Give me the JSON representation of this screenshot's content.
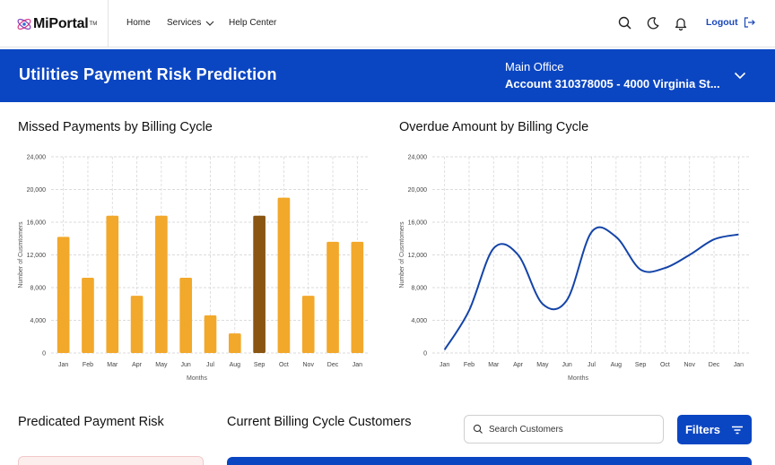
{
  "nav": {
    "logo_text": "MiPortal",
    "logo_tm": "TM",
    "links": {
      "home": "Home",
      "services": "Services",
      "help": "Help Center"
    },
    "logout_label": "Logout"
  },
  "banner": {
    "title": "Utilities Payment Risk Prediction",
    "office_name": "Main Office",
    "account": "Account 310378005 - 4000 Virginia St..."
  },
  "charts": {
    "missed_title": "Missed Payments by Billing Cycle",
    "overdue_title": "Overdue Amount by Billing Cycle"
  },
  "chart_data": [
    {
      "type": "bar",
      "title": "Missed Payments by Billing Cycle",
      "xlabel": "Months",
      "ylabel": "Number of Cusmtomers",
      "categories": [
        "Jan",
        "Feb",
        "Mar",
        "Apr",
        "May",
        "Jun",
        "Jul",
        "Aug",
        "Sep",
        "Oct",
        "Nov",
        "Dec",
        "Jan"
      ],
      "values": [
        14200,
        9200,
        16800,
        7000,
        16800,
        9200,
        4600,
        2400,
        16800,
        19000,
        7000,
        13600,
        13600
      ],
      "highlight_index": 8,
      "ylim": [
        0,
        24000
      ],
      "yticks": [
        "0",
        "4,000",
        "8,000",
        "12,000",
        "16,000",
        "20,000",
        "24,000"
      ],
      "grid": true,
      "colors": {
        "bar": "#f2a82a",
        "highlight": "#8a5511"
      }
    },
    {
      "type": "line",
      "title": "Overdue Amount by Billing Cycle",
      "xlabel": "Months",
      "ylabel": "Number of Cusmtomers",
      "categories": [
        "Jan",
        "Feb",
        "Mar",
        "Apr",
        "May",
        "Jun",
        "Jul",
        "Aug",
        "Sep",
        "Oct",
        "Nov",
        "Dec",
        "Jan"
      ],
      "values": [
        400,
        5200,
        12800,
        12000,
        6000,
        6500,
        14800,
        14200,
        10200,
        10400,
        12000,
        13900,
        14500
      ],
      "ylim": [
        0,
        24000
      ],
      "yticks": [
        "0",
        "4,000",
        "8,000",
        "12,000",
        "16,000",
        "20,000",
        "24,000"
      ],
      "grid": true,
      "colors": {
        "line": "#1444a8"
      }
    }
  ],
  "bottom": {
    "risk_title": "Predicated Payment Risk",
    "customers_title": "Current Billing Cycle Customers",
    "search_placeholder": "Search Customers",
    "filters_label": "Filters"
  }
}
